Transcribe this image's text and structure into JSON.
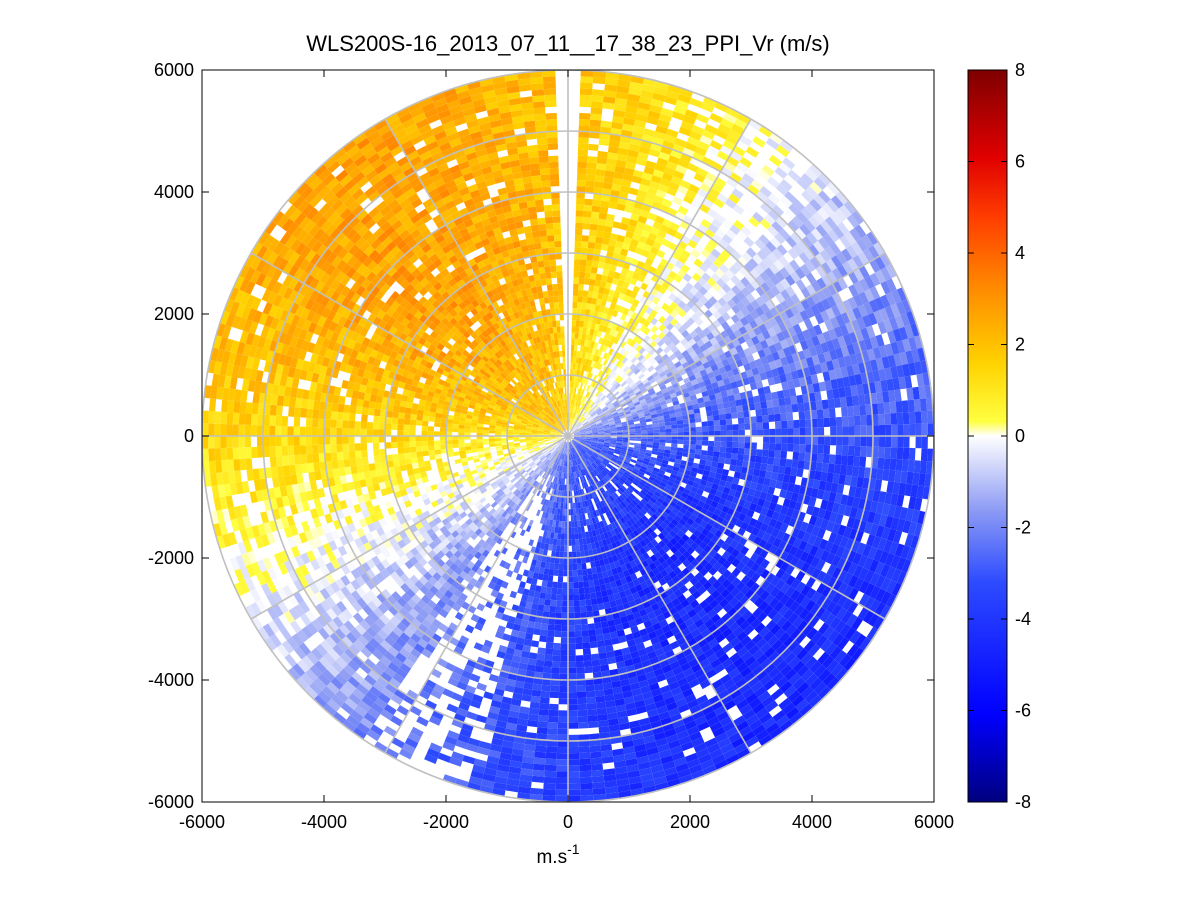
{
  "chart_data": {
    "type": "heatmap",
    "subtype": "polar-ppi",
    "title": "WLS200S-16_2013_07_11__17_38_23_PPI_Vr (m/s)",
    "xlabel_base": "m.s",
    "xlabel_exponent": "-1",
    "ylabel": "",
    "xlim": [
      -6000,
      6000
    ],
    "ylim": [
      -6000,
      6000
    ],
    "xticks": [
      "-6000",
      "-4000",
      "-2000",
      "0",
      "2000",
      "4000",
      "6000"
    ],
    "yticks": [
      "6000",
      "4000",
      "2000",
      "0",
      "-2000",
      "-4000",
      "-6000"
    ],
    "colorbar": {
      "min": -8,
      "max": 8,
      "ticks": [
        "8",
        "6",
        "4",
        "2",
        "0",
        "-2",
        "-4",
        "-6",
        "-8"
      ]
    },
    "range_max": 6000,
    "range_rings": [
      1000,
      2000,
      3000,
      4000,
      5000,
      6000
    ],
    "spoke_angles_deg": [
      0,
      30,
      60,
      90,
      120,
      150,
      180,
      210,
      240,
      270,
      300,
      330
    ],
    "missing_sector_deg": [
      -2,
      2
    ],
    "velocity_field_description": "Radial velocity ranges from about +4 m/s (receding, northwest) to about -5 m/s (approaching, southeast)"
  },
  "colors": {
    "grid": "#c0c0c0",
    "axis": "#000000",
    "background": "#ffffff",
    "colormap": [
      [
        0.0,
        "#00007f"
      ],
      [
        0.12,
        "#0000ff"
      ],
      [
        0.3,
        "#2d4bff"
      ],
      [
        0.4,
        "#8e9cf4"
      ],
      [
        0.5,
        "#ffffff"
      ],
      [
        0.52,
        "#ffff40"
      ],
      [
        0.6,
        "#ffd200"
      ],
      [
        0.7,
        "#ff8c00"
      ],
      [
        0.8,
        "#ff3c00"
      ],
      [
        0.88,
        "#e00000"
      ],
      [
        1.0,
        "#7f0000"
      ]
    ]
  }
}
